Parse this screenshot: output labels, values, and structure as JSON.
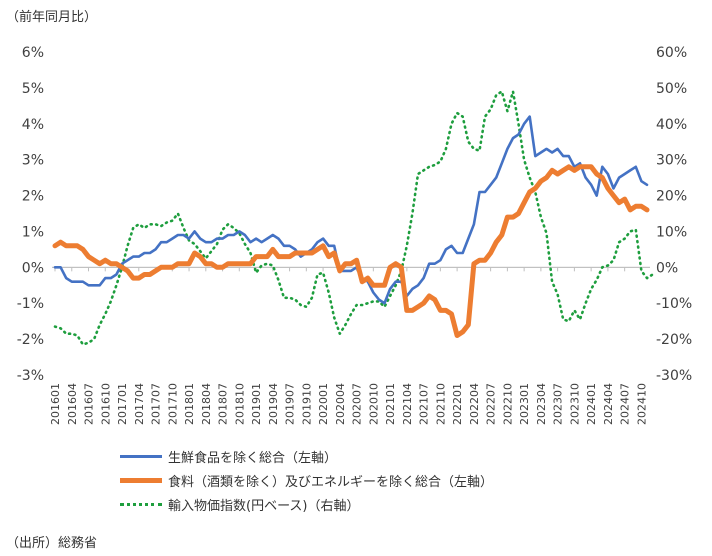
{
  "unit_label": "（前年同月比）",
  "source_label": "（出所）総務省",
  "chart_data": {
    "type": "line",
    "y_left": {
      "ylim": [
        -3,
        6
      ],
      "ticks": [
        "-3%",
        "-2%",
        "-1%",
        "0%",
        "1%",
        "2%",
        "3%",
        "4%",
        "5%",
        "6%"
      ]
    },
    "y_right": {
      "ylim": [
        -30,
        60
      ],
      "ticks": [
        "-30%",
        "-20%",
        "-10%",
        "0%",
        "10%",
        "20%",
        "30%",
        "40%",
        "50%",
        "60%"
      ]
    },
    "x_tick_labels": [
      "201601",
      "201604",
      "201607",
      "201610",
      "201701",
      "201704",
      "201707",
      "201710",
      "201801",
      "201804",
      "201807",
      "201810",
      "201901",
      "201904",
      "201907",
      "201910",
      "202001",
      "202004",
      "202007",
      "202010",
      "202101",
      "202104",
      "202107",
      "202110",
      "202201",
      "202204",
      "202207",
      "202210",
      "202301",
      "202304",
      "202307",
      "202310",
      "202401",
      "202404",
      "202407",
      "202410"
    ],
    "series": [
      {
        "name": "生鮮食品を除く総合（左軸）",
        "axis": "left",
        "color": "#4472C4",
        "style": "solid",
        "values": [
          0.0,
          0.0,
          -0.3,
          -0.4,
          -0.4,
          -0.4,
          -0.5,
          -0.5,
          -0.5,
          -0.3,
          -0.3,
          -0.2,
          0.1,
          0.2,
          0.3,
          0.3,
          0.4,
          0.4,
          0.5,
          0.7,
          0.7,
          0.8,
          0.9,
          0.9,
          0.8,
          1.0,
          0.8,
          0.7,
          0.7,
          0.8,
          0.8,
          0.9,
          0.9,
          1.0,
          0.9,
          0.7,
          0.8,
          0.7,
          0.8,
          0.9,
          0.8,
          0.6,
          0.6,
          0.5,
          0.3,
          0.4,
          0.5,
          0.7,
          0.8,
          0.6,
          0.6,
          -0.1,
          -0.1,
          -0.1,
          0.0,
          -0.3,
          -0.4,
          -0.7,
          -0.9,
          -1.0,
          -0.6,
          -0.4,
          -0.4,
          -0.8,
          -0.6,
          -0.5,
          -0.3,
          0.1,
          0.1,
          0.2,
          0.5,
          0.6,
          0.4,
          0.4,
          0.8,
          1.2,
          2.1,
          2.1,
          2.3,
          2.5,
          2.9,
          3.3,
          3.6,
          3.7,
          4.0,
          4.2,
          3.1,
          3.2,
          3.3,
          3.2,
          3.3,
          3.1,
          3.1,
          2.8,
          2.9,
          2.5,
          2.3,
          2.0,
          2.8,
          2.6,
          2.2,
          2.5,
          2.6,
          2.7,
          2.8,
          2.4,
          2.3
        ]
      },
      {
        "name": "食料（酒類を除く）及びエネルギーを除く総合（左軸）",
        "axis": "left",
        "color": "#ED7D31",
        "style": "thick",
        "values": [
          0.6,
          0.7,
          0.6,
          0.6,
          0.6,
          0.5,
          0.3,
          0.2,
          0.1,
          0.2,
          0.1,
          0.1,
          0.0,
          -0.1,
          -0.3,
          -0.3,
          -0.2,
          -0.2,
          -0.1,
          0.0,
          0.0,
          0.0,
          0.1,
          0.1,
          0.1,
          0.4,
          0.3,
          0.1,
          0.1,
          0.0,
          0.0,
          0.1,
          0.1,
          0.1,
          0.1,
          0.1,
          0.3,
          0.3,
          0.3,
          0.5,
          0.3,
          0.3,
          0.3,
          0.4,
          0.4,
          0.4,
          0.4,
          0.5,
          0.6,
          0.3,
          0.4,
          -0.1,
          0.1,
          0.1,
          0.2,
          -0.4,
          -0.3,
          -0.5,
          -0.5,
          -0.5,
          0.0,
          0.1,
          0.0,
          -1.2,
          -1.2,
          -1.1,
          -1.0,
          -0.8,
          -0.9,
          -1.2,
          -1.2,
          -1.3,
          -1.9,
          -1.8,
          -1.6,
          0.1,
          0.2,
          0.2,
          0.4,
          0.7,
          0.9,
          1.4,
          1.4,
          1.5,
          1.8,
          2.1,
          2.2,
          2.4,
          2.5,
          2.7,
          2.6,
          2.7,
          2.8,
          2.7,
          2.8,
          2.8,
          2.8,
          2.6,
          2.5,
          2.2,
          2.0,
          1.8,
          1.9,
          1.6,
          1.7,
          1.7,
          1.6
        ]
      },
      {
        "name": "輸入物価指数(円ベース)（右軸）",
        "axis": "right",
        "color": "#1E9E3E",
        "style": "dotted",
        "values": [
          -16.5,
          -17.0,
          -18.5,
          -18.5,
          -19.0,
          -21.5,
          -21.0,
          -20.0,
          -16.0,
          -13.0,
          -9.5,
          -5.0,
          0.0,
          6.0,
          11.0,
          12.0,
          11.0,
          12.0,
          12.0,
          11.5,
          12.5,
          13.0,
          15.0,
          11.0,
          7.5,
          6.5,
          4.5,
          2.5,
          4.5,
          6.5,
          10.5,
          12.0,
          11.0,
          9.5,
          6.5,
          4.0,
          -1.5,
          0.5,
          1.0,
          0.5,
          -3.5,
          -8.5,
          -8.5,
          -9.0,
          -10.5,
          -11.0,
          -8.5,
          -2.0,
          -1.5,
          -7.0,
          -14.0,
          -18.5,
          -16.0,
          -13.0,
          -10.5,
          -10.5,
          -10.0,
          -9.5,
          -9.5,
          -11.0,
          -8.0,
          -5.0,
          -1.0,
          6.0,
          15.0,
          26.0,
          27.0,
          28.0,
          28.5,
          29.5,
          33.0,
          40.0,
          43.0,
          42.0,
          35.0,
          33.0,
          32.5,
          42.0,
          44.0,
          48.0,
          49.0,
          43.5,
          49.0,
          40.0,
          30.0,
          25.0,
          21.0,
          14.0,
          9.5,
          -4.0,
          -7.5,
          -14.5,
          -15.0,
          -12.0,
          -14.5,
          -10.0,
          -6.0,
          -3.5,
          0.0,
          0.5,
          2.0,
          7.0,
          8.0,
          10.0,
          10.5,
          -1.0,
          -3.0,
          -2.0
        ]
      }
    ]
  }
}
